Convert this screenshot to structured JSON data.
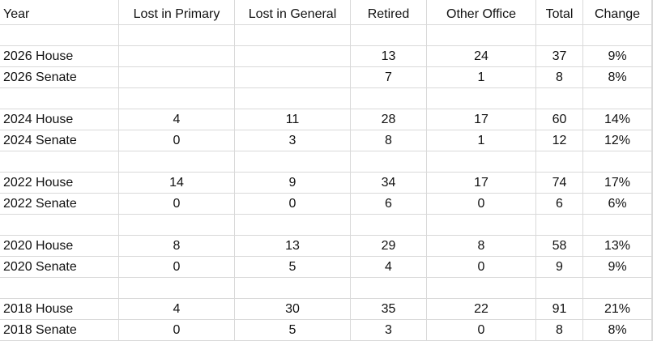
{
  "table": {
    "header": [
      "Year",
      "Lost in Primary",
      "Lost in General",
      "Retired",
      "Other Office",
      "Total",
      "Change"
    ],
    "groups": [
      {
        "rows": [
          [
            "2026 House",
            null,
            null,
            "13",
            "24",
            "37",
            "9%"
          ],
          [
            "2026 Senate",
            null,
            null,
            "7",
            "1",
            "8",
            "8%"
          ]
        ]
      },
      {
        "rows": [
          [
            "2024 House",
            "4",
            "11",
            "28",
            "17",
            "60",
            "14%"
          ],
          [
            "2024 Senate",
            "0",
            "3",
            "8",
            "1",
            "12",
            "12%"
          ]
        ]
      },
      {
        "rows": [
          [
            "2022 House",
            "14",
            "9",
            "34",
            "17",
            "74",
            "17%"
          ],
          [
            "2022 Senate",
            "0",
            "0",
            "6",
            "0",
            "6",
            "6%"
          ]
        ]
      },
      {
        "rows": [
          [
            "2020 House",
            "8",
            "13",
            "29",
            "8",
            "58",
            "13%"
          ],
          [
            "2020 Senate",
            "0",
            "5",
            "4",
            "0",
            "9",
            "9%"
          ]
        ]
      },
      {
        "rows": [
          [
            "2018 House",
            "4",
            "30",
            "35",
            "22",
            "91",
            "21%"
          ],
          [
            "2018 Senate",
            "0",
            "5",
            "3",
            "0",
            "8",
            "8%"
          ]
        ]
      }
    ]
  }
}
